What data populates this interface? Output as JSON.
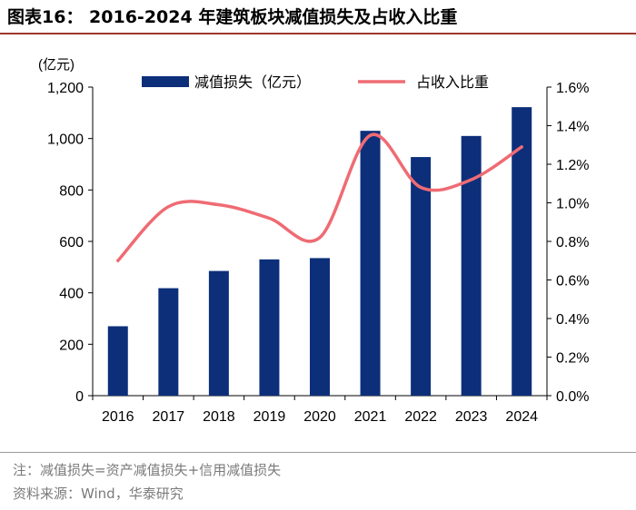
{
  "figure": {
    "title": "图表16：  2016-2024 年建筑板块减值损失及占收入比重",
    "note": "注：减值损失=资产减值损失+信用减值损失",
    "source": "资料来源：Wind，华泰研究"
  },
  "chart_data": {
    "type": "bar+line",
    "categories": [
      "2016",
      "2017",
      "2018",
      "2019",
      "2020",
      "2021",
      "2022",
      "2023",
      "2024"
    ],
    "series": [
      {
        "name": "减值损失（亿元）",
        "type": "bar",
        "axis": "left",
        "values": [
          270,
          418,
          485,
          530,
          535,
          1030,
          928,
          1010,
          1122
        ]
      },
      {
        "name": "占收入比重",
        "type": "line",
        "axis": "right",
        "values": [
          0.7,
          0.98,
          0.99,
          0.92,
          0.82,
          1.35,
          1.08,
          1.12,
          1.29
        ]
      }
    ],
    "left_axis": {
      "unit": "(亿元)",
      "min": 0,
      "max": 1200,
      "ticks": [
        0,
        200,
        400,
        600,
        800,
        1000,
        1200
      ],
      "tick_labels": [
        "0",
        "200",
        "400",
        "600",
        "800",
        "1,000",
        "1,200"
      ]
    },
    "right_axis": {
      "min": 0,
      "max": 1.6,
      "ticks": [
        0,
        0.2,
        0.4,
        0.6,
        0.8,
        1.0,
        1.2,
        1.4,
        1.6
      ],
      "tick_labels": [
        "0.0%",
        "0.2%",
        "0.4%",
        "0.6%",
        "0.8%",
        "1.0%",
        "1.2%",
        "1.4%",
        "1.6%"
      ]
    },
    "legend_position": "top",
    "colors": {
      "bar": "#0d2f7a",
      "line": "#ef6b73"
    }
  }
}
